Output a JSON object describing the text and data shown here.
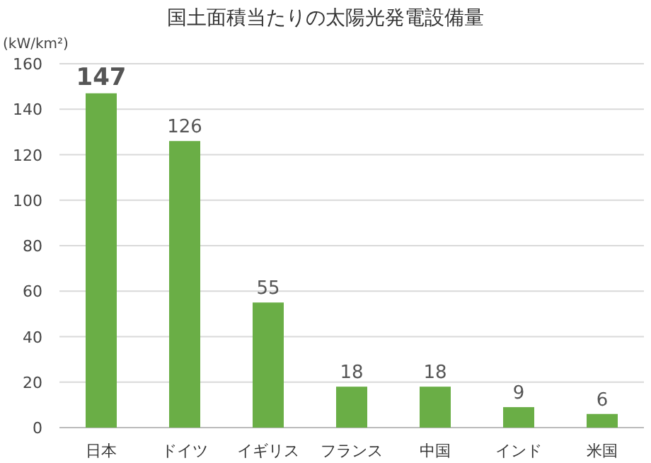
{
  "chart_data": {
    "type": "bar",
    "title": "国土面積当たりの太陽光発電設備量",
    "ylabel": "(kW/km²)",
    "categories": [
      "日本",
      "ドイツ",
      "イギリス",
      "フランス",
      "中国",
      "インド",
      "米国"
    ],
    "values": [
      147,
      126,
      55,
      18,
      18,
      9,
      6
    ],
    "color": "#6aae46",
    "data_labels": true,
    "ylim": [
      0,
      160
    ],
    "yticks": [
      0,
      20,
      40,
      60,
      80,
      100,
      120,
      140,
      160
    ],
    "grid": "y"
  }
}
